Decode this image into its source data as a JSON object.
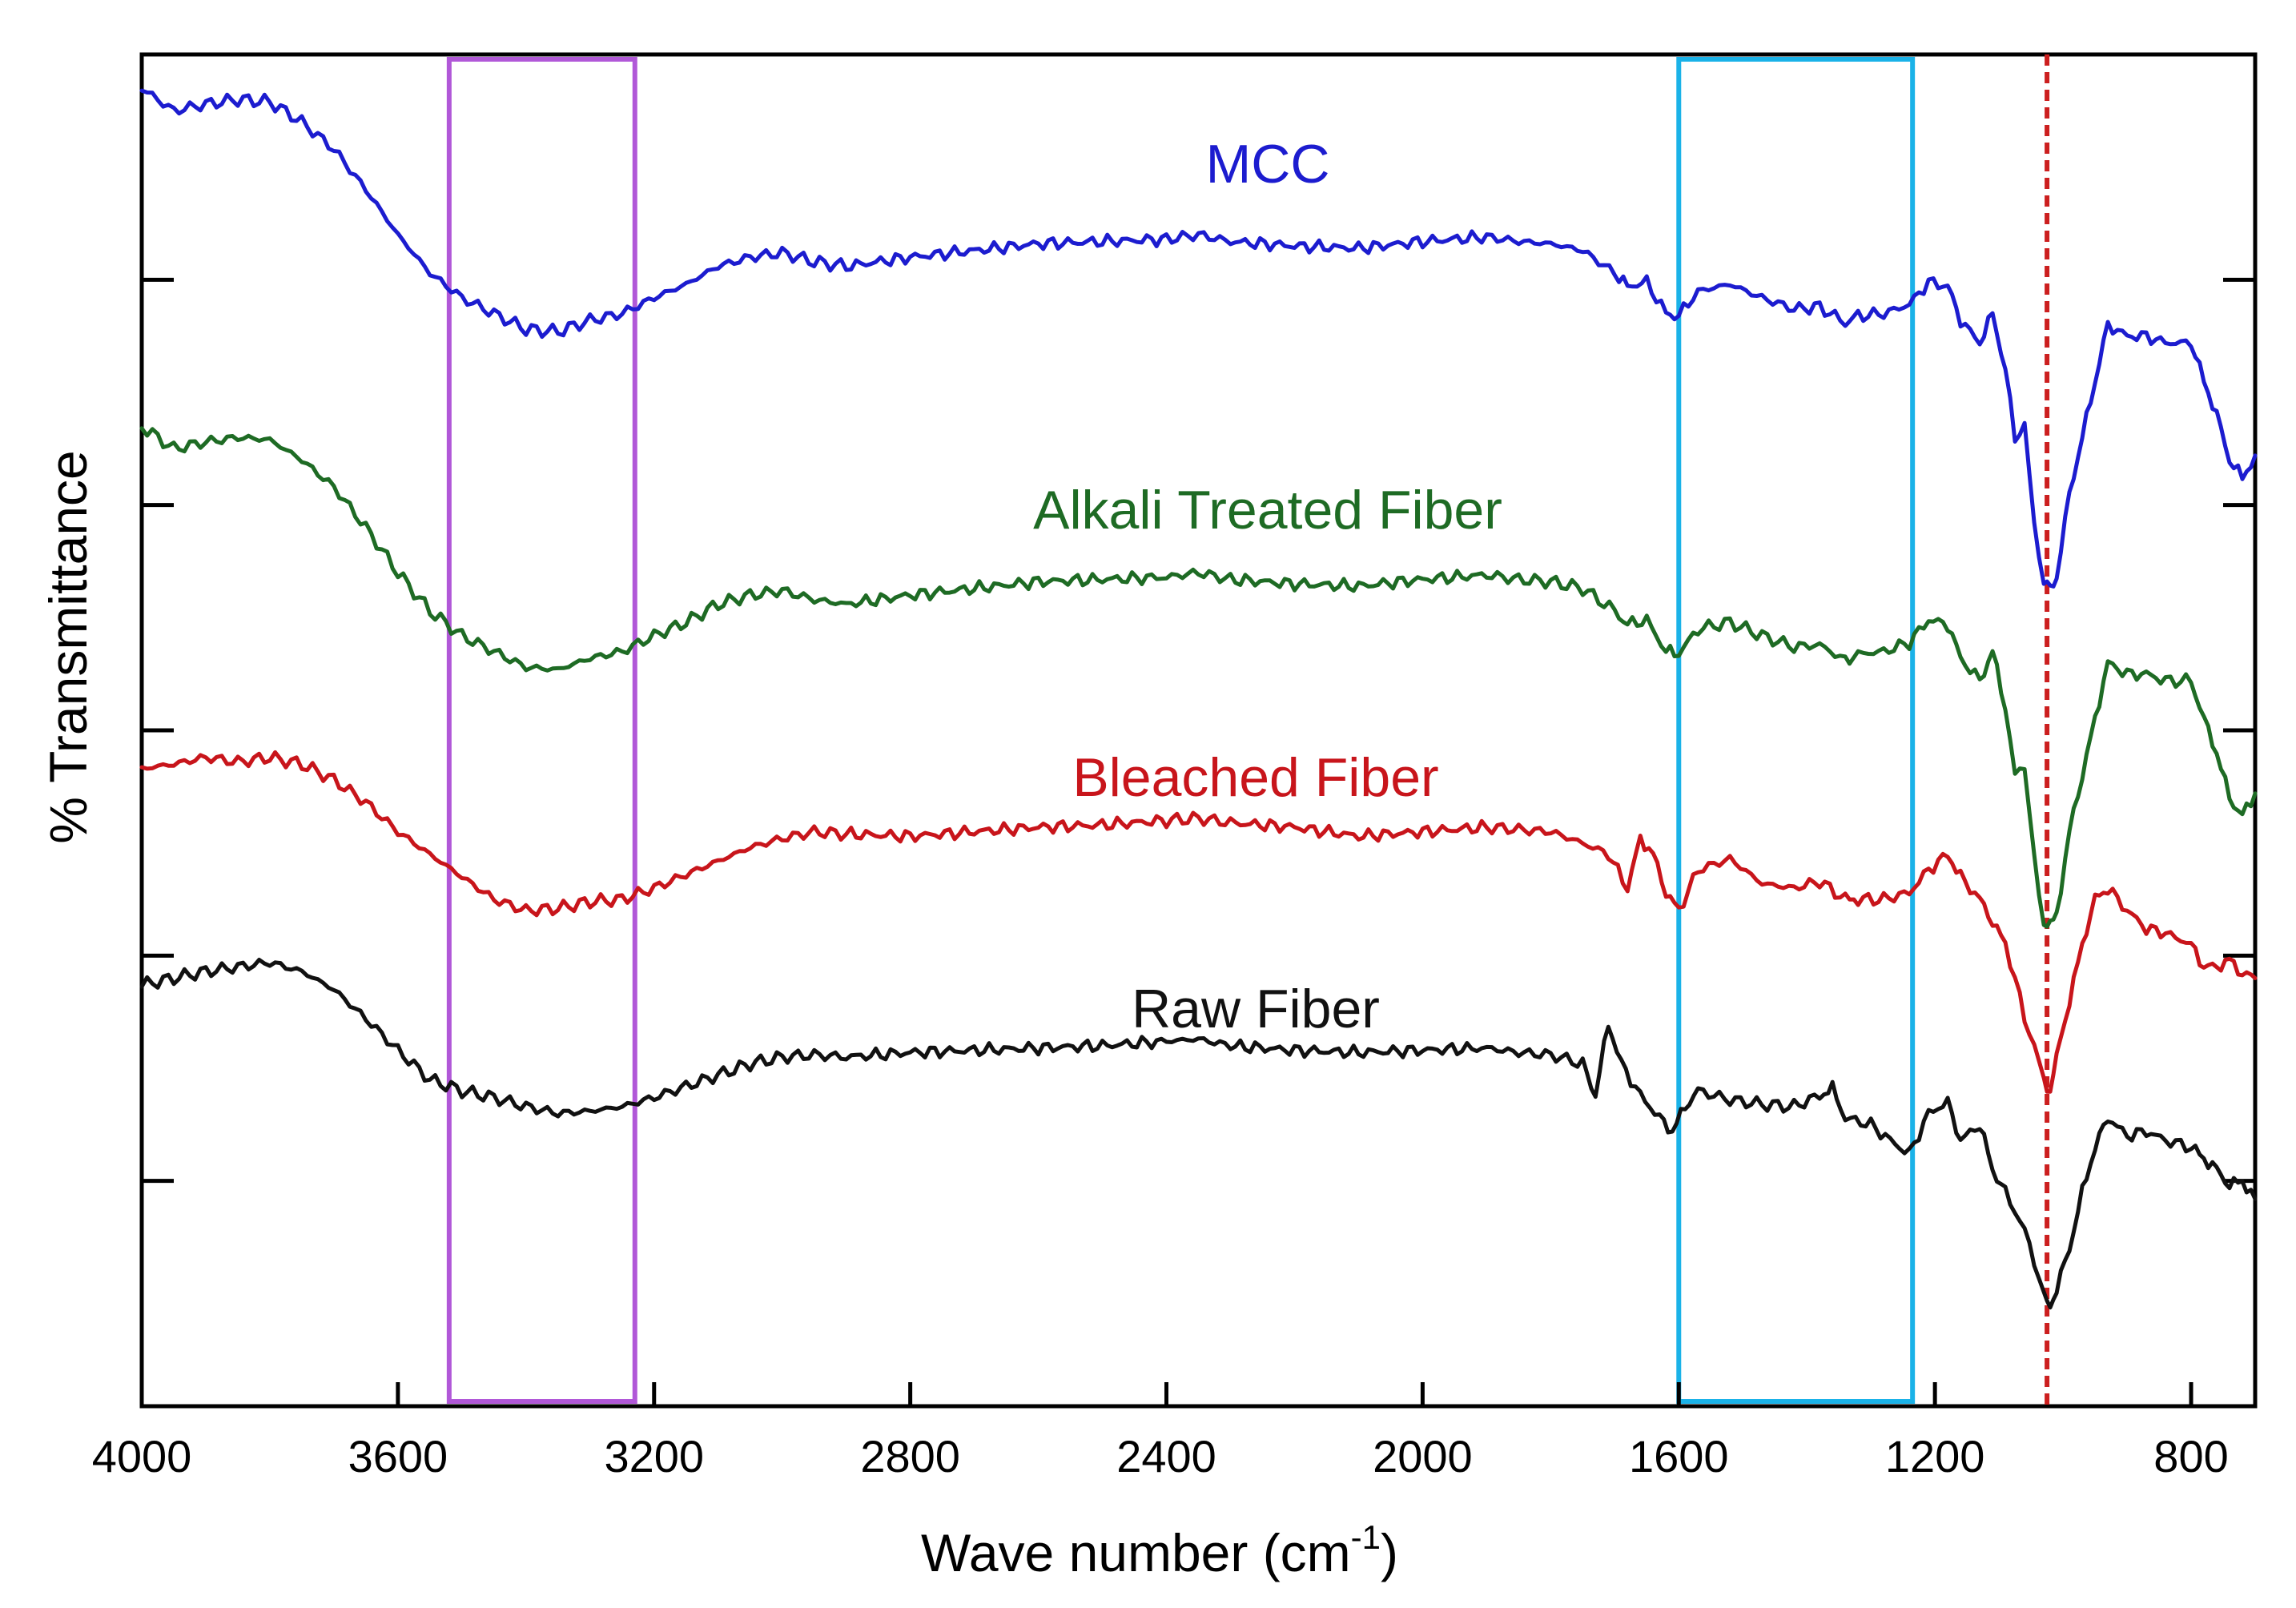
{
  "chart_data": {
    "type": "line",
    "title": "",
    "xlabel": "Wave number (cm",
    "xlabel_sup": "-1",
    "xlabel_suffix": ")",
    "ylabel": "% Transmittance",
    "xlim": [
      4000,
      700
    ],
    "x_reversed": true,
    "ylim": [
      0,
      6
    ],
    "x_ticks": [
      4000,
      3600,
      3200,
      2800,
      2400,
      2000,
      1600,
      1200,
      800
    ],
    "y_ticks": [
      1,
      2,
      3,
      4,
      5
    ],
    "y_tick_labels_shown": false,
    "grid": false,
    "legend": "inline labels",
    "highlight_regions": [
      {
        "x_from": 3520,
        "x_to": 3230,
        "color": "#b158d8"
      },
      {
        "x_from": 1600,
        "x_to": 1235,
        "color": "#1ab2e8"
      }
    ],
    "reference_lines": [
      {
        "x": 1025,
        "color": "#cc1f1f",
        "style": "dashed"
      }
    ],
    "series": [
      {
        "name": "MCC",
        "color": "#1c1ccf",
        "x": [
          4000,
          3950,
          3900,
          3850,
          3800,
          3750,
          3700,
          3650,
          3600,
          3550,
          3500,
          3450,
          3400,
          3350,
          3300,
          3250,
          3200,
          3150,
          3100,
          3050,
          3000,
          2950,
          2900,
          2800,
          2700,
          2600,
          2500,
          2400,
          2350,
          2300,
          2200,
          2100,
          2000,
          1900,
          1850,
          1800,
          1750,
          1700,
          1680,
          1650,
          1620,
          1600,
          1570,
          1520,
          1470,
          1420,
          1380,
          1340,
          1320,
          1280,
          1240,
          1210,
          1180,
          1160,
          1130,
          1110,
          1090,
          1075,
          1060,
          1045,
          1030,
          1020,
          1010,
          990,
          970,
          950,
          930,
          900,
          870,
          840,
          800,
          780,
          760,
          740,
          720,
          700
        ],
        "values": [
          5.85,
          5.75,
          5.78,
          5.8,
          5.79,
          5.7,
          5.58,
          5.4,
          5.2,
          5.03,
          4.92,
          4.85,
          4.78,
          4.77,
          4.82,
          4.85,
          4.92,
          4.98,
          5.06,
          5.1,
          5.12,
          5.08,
          5.06,
          5.1,
          5.13,
          5.16,
          5.17,
          5.18,
          5.2,
          5.17,
          5.15,
          5.14,
          5.17,
          5.19,
          5.17,
          5.16,
          5.13,
          5.03,
          4.97,
          4.99,
          4.85,
          4.84,
          4.95,
          4.98,
          4.92,
          4.87,
          4.88,
          4.81,
          4.84,
          4.85,
          4.89,
          4.99,
          4.97,
          4.82,
          4.72,
          4.85,
          4.6,
          4.3,
          4.35,
          3.92,
          3.65,
          3.63,
          3.68,
          4.05,
          4.3,
          4.55,
          4.8,
          4.75,
          4.75,
          4.72,
          4.72,
          4.55,
          4.4,
          4.2,
          4.12,
          4.22
        ]
      },
      {
        "name": "Alkali Treated Fiber",
        "color": "#1e6b24",
        "x": [
          4000,
          3950,
          3900,
          3850,
          3800,
          3750,
          3700,
          3650,
          3600,
          3550,
          3500,
          3450,
          3400,
          3350,
          3300,
          3250,
          3200,
          3150,
          3100,
          3050,
          3000,
          2950,
          2900,
          2800,
          2700,
          2600,
          2500,
          2400,
          2350,
          2300,
          2200,
          2100,
          2000,
          1900,
          1850,
          1800,
          1750,
          1700,
          1680,
          1650,
          1620,
          1600,
          1570,
          1520,
          1470,
          1420,
          1380,
          1340,
          1320,
          1280,
          1240,
          1210,
          1180,
          1160,
          1130,
          1110,
          1090,
          1075,
          1060,
          1045,
          1030,
          1020,
          1010,
          990,
          970,
          950,
          930,
          900,
          870,
          840,
          800,
          780,
          760,
          740,
          720,
          700
        ],
        "values": [
          4.35,
          4.25,
          4.28,
          4.3,
          4.29,
          4.2,
          4.08,
          3.9,
          3.7,
          3.53,
          3.42,
          3.35,
          3.28,
          3.27,
          3.32,
          3.35,
          3.42,
          3.48,
          3.56,
          3.6,
          3.62,
          3.58,
          3.56,
          3.6,
          3.63,
          3.66,
          3.67,
          3.68,
          3.7,
          3.67,
          3.65,
          3.64,
          3.67,
          3.69,
          3.67,
          3.66,
          3.63,
          3.53,
          3.47,
          3.49,
          3.35,
          3.34,
          3.45,
          3.48,
          3.42,
          3.37,
          3.38,
          3.31,
          3.34,
          3.35,
          3.39,
          3.49,
          3.47,
          3.32,
          3.22,
          3.35,
          3.1,
          2.8,
          2.85,
          2.42,
          2.15,
          2.13,
          2.18,
          2.55,
          2.8,
          3.05,
          3.3,
          3.25,
          3.25,
          3.22,
          3.22,
          3.05,
          2.9,
          2.7,
          2.62,
          2.72
        ]
      },
      {
        "name": "Bleached Fiber",
        "color": "#c8151b",
        "x": [
          4000,
          3950,
          3900,
          3850,
          3800,
          3750,
          3700,
          3650,
          3600,
          3550,
          3500,
          3450,
          3400,
          3350,
          3300,
          3250,
          3200,
          3150,
          3100,
          3050,
          3000,
          2950,
          2900,
          2800,
          2700,
          2600,
          2500,
          2400,
          2350,
          2300,
          2200,
          2100,
          2000,
          1900,
          1850,
          1800,
          1750,
          1710,
          1680,
          1660,
          1640,
          1620,
          1600,
          1570,
          1520,
          1470,
          1420,
          1380,
          1340,
          1320,
          1280,
          1240,
          1210,
          1180,
          1160,
          1130,
          1110,
          1090,
          1075,
          1060,
          1045,
          1030,
          1020,
          1010,
          990,
          970,
          950,
          930,
          900,
          870,
          840,
          800,
          780,
          760,
          740,
          720,
          700
        ],
        "values": [
          2.83,
          2.85,
          2.88,
          2.86,
          2.88,
          2.85,
          2.78,
          2.68,
          2.55,
          2.45,
          2.35,
          2.25,
          2.2,
          2.21,
          2.24,
          2.25,
          2.3,
          2.36,
          2.42,
          2.48,
          2.52,
          2.55,
          2.54,
          2.53,
          2.55,
          2.57,
          2.58,
          2.6,
          2.61,
          2.59,
          2.57,
          2.53,
          2.55,
          2.57,
          2.56,
          2.55,
          2.5,
          2.45,
          2.3,
          2.52,
          2.45,
          2.28,
          2.2,
          2.38,
          2.43,
          2.32,
          2.3,
          2.33,
          2.25,
          2.25,
          2.25,
          2.28,
          2.38,
          2.45,
          2.35,
          2.25,
          2.15,
          2.05,
          1.9,
          1.72,
          1.6,
          1.45,
          1.4,
          1.55,
          1.8,
          2.05,
          2.25,
          2.3,
          2.2,
          2.12,
          2.1,
          2.05,
          1.95,
          1.95,
          1.98,
          1.92,
          1.9
        ]
      },
      {
        "name": "Raw Fiber",
        "color": "#111111",
        "x": [
          4000,
          3950,
          3900,
          3850,
          3800,
          3750,
          3700,
          3650,
          3600,
          3550,
          3500,
          3450,
          3400,
          3350,
          3300,
          3250,
          3200,
          3150,
          3100,
          3050,
          3000,
          2950,
          2900,
          2800,
          2700,
          2600,
          2500,
          2400,
          2350,
          2300,
          2200,
          2100,
          2000,
          1900,
          1850,
          1800,
          1750,
          1730,
          1710,
          1690,
          1660,
          1630,
          1610,
          1590,
          1570,
          1520,
          1470,
          1420,
          1380,
          1360,
          1340,
          1300,
          1270,
          1240,
          1210,
          1180,
          1160,
          1130,
          1110,
          1090,
          1060,
          1045,
          1030,
          1020,
          1010,
          990,
          970,
          950,
          930,
          900,
          870,
          840,
          800,
          780,
          760,
          740,
          720,
          700
        ],
        "values": [
          1.87,
          1.9,
          1.93,
          1.95,
          1.97,
          1.93,
          1.85,
          1.72,
          1.58,
          1.45,
          1.4,
          1.37,
          1.33,
          1.3,
          1.31,
          1.33,
          1.37,
          1.42,
          1.47,
          1.52,
          1.55,
          1.56,
          1.55,
          1.57,
          1.58,
          1.59,
          1.6,
          1.62,
          1.63,
          1.6,
          1.58,
          1.57,
          1.58,
          1.59,
          1.57,
          1.56,
          1.52,
          1.38,
          1.7,
          1.52,
          1.38,
          1.28,
          1.22,
          1.33,
          1.4,
          1.36,
          1.34,
          1.33,
          1.38,
          1.41,
          1.28,
          1.25,
          1.18,
          1.12,
          1.3,
          1.35,
          1.18,
          1.25,
          1.05,
          0.95,
          0.78,
          0.65,
          0.48,
          0.45,
          0.52,
          0.7,
          0.95,
          1.15,
          1.28,
          1.2,
          1.22,
          1.18,
          1.15,
          1.1,
          1.05,
          0.98,
          1.0,
          0.92
        ]
      }
    ]
  }
}
